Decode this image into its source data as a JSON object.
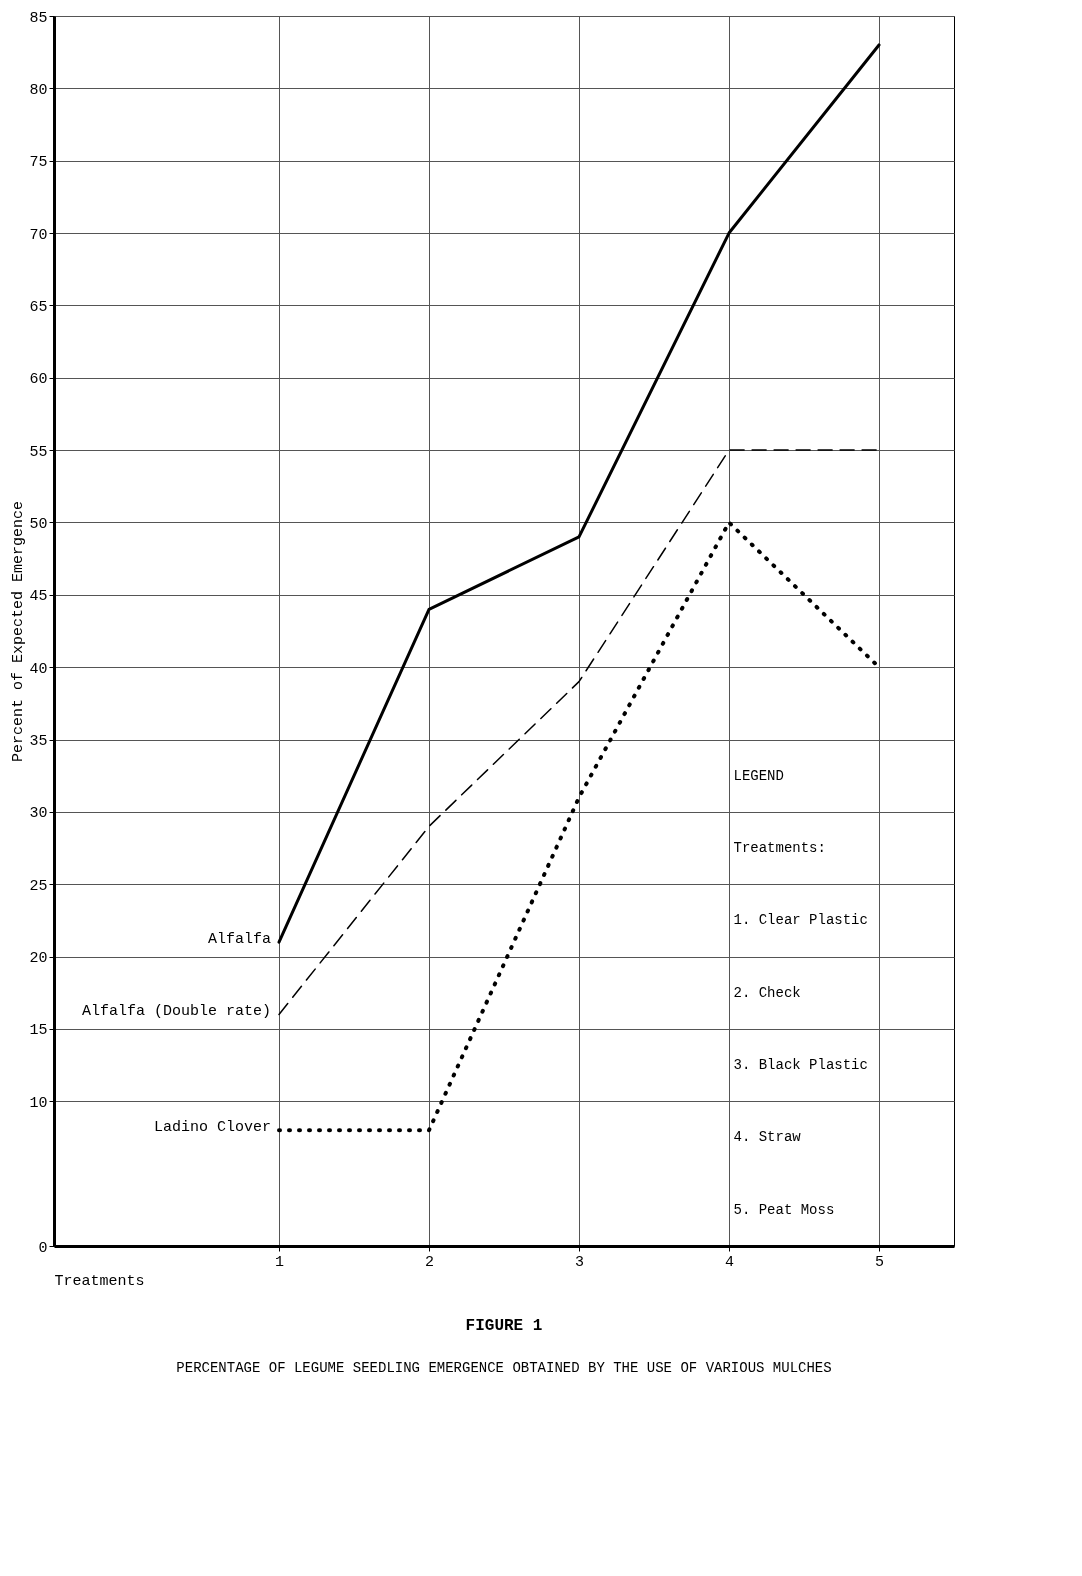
{
  "chart_data": {
    "type": "line",
    "title": "FIGURE 1",
    "subtitle": "PERCENTAGE OF LEGUME SEEDLING EMERGENCE OBTAINED BY THE USE OF VARIOUS MULCHES",
    "xlabel": "Treatments",
    "ylabel": "Percent of Expected Emergence",
    "x": [
      1,
      2,
      3,
      4,
      5
    ],
    "series": [
      {
        "name": "Alfalfa",
        "color": "#000000",
        "line_style": "solid",
        "values": [
          21,
          44,
          49,
          70,
          83
        ]
      },
      {
        "name": "Alfalfa (Double rate)",
        "color": "#000000",
        "line_style": "dashed",
        "values": [
          16,
          29,
          39,
          55,
          55
        ]
      },
      {
        "name": "Ladino Clover",
        "color": "#000000",
        "line_style": "dotted",
        "values": [
          8,
          8,
          31,
          50,
          40
        ]
      }
    ],
    "xlim": [
      -0.5,
      5.5
    ],
    "xticks": [
      1,
      2,
      3,
      4,
      5
    ],
    "ylim": [
      0,
      85
    ],
    "yticks": [
      0,
      10,
      15,
      20,
      25,
      30,
      35,
      40,
      45,
      50,
      55,
      60,
      65,
      70,
      75,
      80,
      85
    ],
    "grid": true,
    "marker": "none",
    "annotations": [
      "LEGEND",
      "Treatments:",
      "1. Clear Plastic",
      "2. Check",
      "3. Black Plastic",
      "4. Straw",
      "5. Peat Moss"
    ]
  }
}
